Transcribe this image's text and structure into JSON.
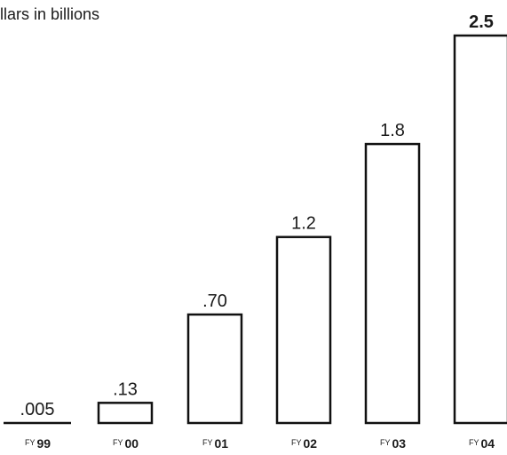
{
  "chart_data": {
    "type": "bar",
    "subtitle": "llars in billions",
    "categories": [
      {
        "prefix": "FY",
        "num": "99"
      },
      {
        "prefix": "FY",
        "num": "00"
      },
      {
        "prefix": "FY",
        "num": "01"
      },
      {
        "prefix": "FY",
        "num": "02"
      },
      {
        "prefix": "FY",
        "num": "03"
      },
      {
        "prefix": "FY",
        "num": "04"
      }
    ],
    "values": [
      0.005,
      0.13,
      0.7,
      1.2,
      1.8,
      2.5
    ],
    "value_labels": [
      ".005",
      ".13",
      ".70",
      "1.2",
      "1.8",
      "2.5"
    ],
    "emphasized_index": 5,
    "ylim": [
      0,
      2.5
    ],
    "grid": false,
    "legend": "none",
    "colors": {
      "bar_fill": "#ffffff",
      "bar_stroke": "#111111",
      "text": "#1a1a1a"
    }
  }
}
